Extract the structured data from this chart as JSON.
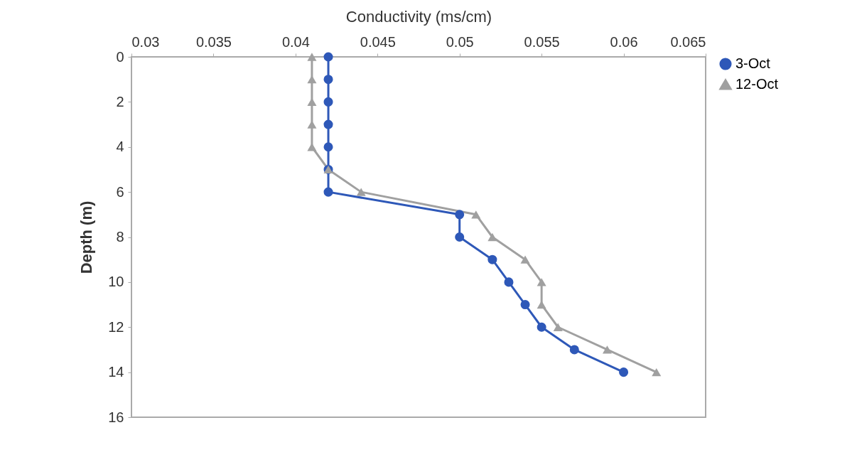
{
  "chart_data": {
    "type": "line",
    "xlabel": "Conductivity (ms/cm)",
    "ylabel": "Depth (m)",
    "xlim": [
      0.03,
      0.065
    ],
    "xticks": [
      0.03,
      0.035,
      0.04,
      0.045,
      0.05,
      0.055,
      0.06,
      0.065
    ],
    "ylim": [
      16,
      0
    ],
    "yticks": [
      0,
      2,
      4,
      6,
      8,
      10,
      12,
      14,
      16
    ],
    "grid": false,
    "legend": "right",
    "series": [
      {
        "name": "3-Oct",
        "color": "#2e58b8",
        "marker": "circle",
        "x": [
          0.042,
          0.042,
          0.042,
          0.042,
          0.042,
          0.042,
          0.042,
          0.05,
          0.05,
          0.052,
          0.053,
          0.054,
          0.055,
          0.057,
          0.06
        ],
        "values": [
          0,
          1,
          2,
          3,
          4,
          5,
          6,
          7,
          8,
          9,
          10,
          11,
          12,
          13,
          14
        ]
      },
      {
        "name": "12-Oct",
        "color": "#a0a0a0",
        "marker": "triangle",
        "x": [
          0.041,
          0.041,
          0.041,
          0.041,
          0.041,
          0.042,
          0.044,
          0.051,
          0.052,
          0.054,
          0.055,
          0.055,
          0.056,
          0.059,
          0.062
        ],
        "values": [
          0,
          1,
          2,
          3,
          4,
          5,
          6,
          7,
          8,
          9,
          10,
          11,
          12,
          13,
          14
        ]
      }
    ]
  }
}
